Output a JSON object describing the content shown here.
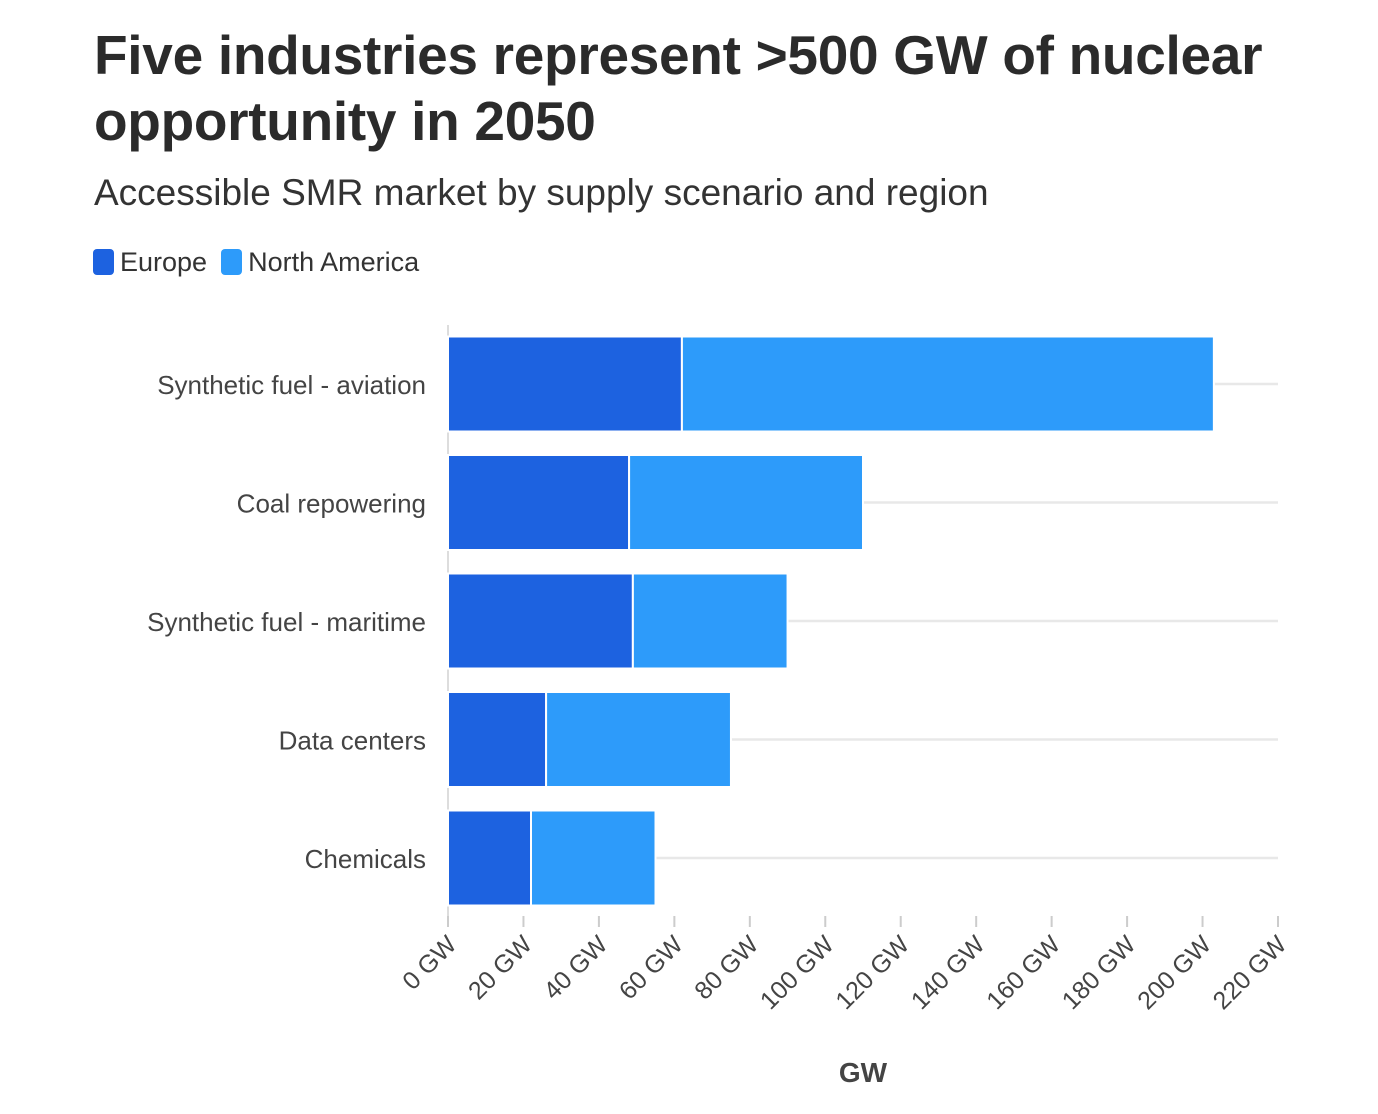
{
  "title": "Five industries represent >500 GW of nuclear opportunity in 2050",
  "subtitle": "Accessible SMR market by supply scenario and region",
  "colors": {
    "europe": "#1d62e0",
    "north_america": "#2d9bfa",
    "grid": "#e8e8e8",
    "axis": "#dddddd"
  },
  "legend": [
    {
      "label": "Europe",
      "color": "#1d62e0"
    },
    {
      "label": "North America",
      "color": "#2d9bfa"
    }
  ],
  "chart_data": {
    "type": "bar",
    "orientation": "horizontal",
    "stacked": true,
    "categories": [
      "Synthetic fuel - aviation",
      "Coal repowering",
      "Synthetic fuel - maritime",
      "Data centers",
      "Chemicals"
    ],
    "series": [
      {
        "name": "Europe",
        "color": "#1d62e0",
        "values": [
          62,
          48,
          49,
          26,
          22
        ]
      },
      {
        "name": "North America",
        "color": "#2d9bfa",
        "values": [
          141,
          62,
          41,
          49,
          33
        ]
      }
    ],
    "xlabel": "GW",
    "xlim": [
      0,
      220
    ],
    "xticks": [
      0,
      20,
      40,
      60,
      80,
      100,
      120,
      140,
      160,
      180,
      200,
      220
    ],
    "tick_labels": [
      "0 GW",
      "20 GW",
      "40 GW",
      "60 GW",
      "80 GW",
      "100 GW",
      "120 GW",
      "140 GW",
      "160 GW",
      "180 GW",
      "200 GW",
      "220 GW"
    ],
    "legend_position": "top-left",
    "grid": true
  }
}
